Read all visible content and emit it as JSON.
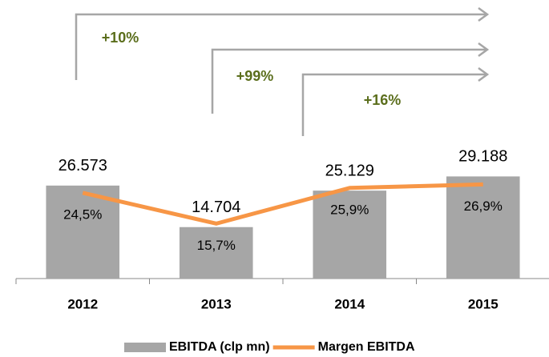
{
  "chart_data": {
    "type": "bar",
    "categories": [
      "2012",
      "2013",
      "2014",
      "2015"
    ],
    "series": [
      {
        "name": "EBITDA (clp mn)",
        "type": "bar",
        "color": "#a6a6a6",
        "values": [
          26573,
          14704,
          25129,
          29188
        ],
        "value_labels": [
          "26.573",
          "14.704",
          "25.129",
          "29.188"
        ]
      },
      {
        "name": "Margen EBITDA",
        "type": "line",
        "axis": "y2",
        "color": "#f79646",
        "values": [
          24.5,
          15.7,
          25.9,
          26.9
        ],
        "value_labels": [
          "24,5%",
          "15,7%",
          "25,9%",
          "26,9%"
        ]
      }
    ],
    "annotations": [
      "+10%",
      "+99%",
      "+16%"
    ],
    "ylim": [
      0,
      70000
    ],
    "y2lim": [
      0,
      70
    ],
    "legend": "bottom"
  }
}
